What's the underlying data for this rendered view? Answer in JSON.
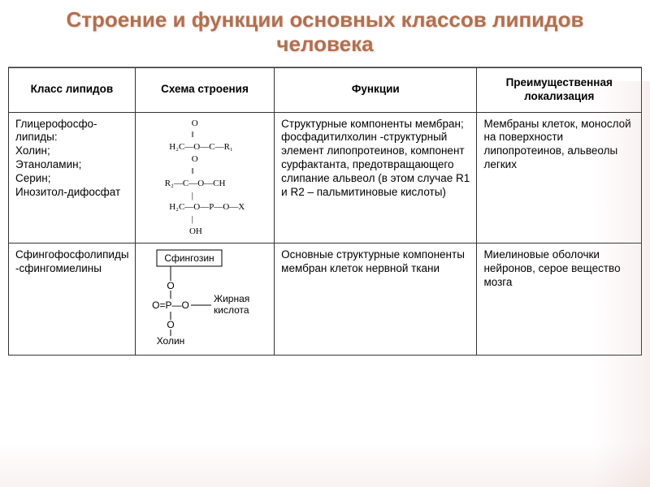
{
  "title": "Строение и функции основных классов липидов человека",
  "title_color": "#b07050",
  "title_fontsize": 26,
  "background_color": "#ffffff",
  "border_color": "#333333",
  "cell_fontsize": 13.5,
  "columns": [
    {
      "label": "Класс липидов",
      "width_pct": 20
    },
    {
      "label": "Схема строения",
      "width_pct": 22
    },
    {
      "label": "Функции",
      "width_pct": 32
    },
    {
      "label": "Преимущественная локализация",
      "width_pct": 26
    }
  ],
  "rows": [
    {
      "class_text": "Глицерофосфо-липиды:\nХолин;\nЭтаноламин;\nСерин;\nИнозитол-дифосфат",
      "scheme_id": "glycerophospholipid",
      "scheme_text": "            O\n            ‖\n  H₂C—O—C—R₁\n            O\n            ‖\nR₂—C—O—CH\n            |\n  H₂C—O—P—O—X\n            |\n           OH",
      "functions_text": "Структурные компоненты мембран;\nфосфадитилхолин -структурный элемент липопротеинов, компонент сурфактанта, предотвращающего слипание альвеол (в этом случае R1 и R2 – пальмитиновые кислоты)",
      "localization_text": "Мембраны клеток, монослой на поверхности липопротеинов, альвеолы легких"
    },
    {
      "class_text": "Сфингофосфолипиды\n-сфингомиелины",
      "scheme_id": "sphingomyelin",
      "scheme_labels": {
        "top": "Сфингозин",
        "mid": "O=P—O",
        "right": "Жирная кислота",
        "bottom": "Холин"
      },
      "functions_text": "Основные структурные компоненты мембран клеток нервной ткани",
      "localization_text": "Миелиновые оболочки нейронов, серое вещество мозга"
    }
  ]
}
